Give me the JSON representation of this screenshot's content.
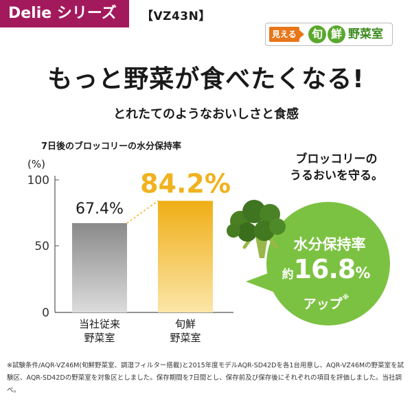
{
  "series_badge": "Delie シリーズ",
  "model": "【VZ43N】",
  "brand": {
    "pre": "見える",
    "kanji1": "旬",
    "kanji2": "鮮",
    "post": "野菜室"
  },
  "headline": "もっと野菜が食べたくなる!",
  "subhead": "とれたてのようなおいしさと食感",
  "colors": {
    "badge": "#a31a5c",
    "bar_gray": "#8c8c8c",
    "bar_gold": "#f0b21e",
    "value_gold": "#f0b21e",
    "bubble": "#7cc242"
  },
  "chart_data": {
    "type": "bar",
    "title": "7日後のブロッコリーの水分保持率",
    "ylabel": "(%)",
    "ylim": [
      0,
      100
    ],
    "yticks": [
      "0",
      "50",
      "100"
    ],
    "categories": [
      {
        "line1": "当社従来",
        "line2": "野菜室"
      },
      {
        "line1": "旬鮮",
        "line2": "野菜室"
      }
    ],
    "values": [
      67.4,
      84.2
    ],
    "value_labels": [
      "67.4%",
      "84.2%"
    ]
  },
  "callout": {
    "head_line1": "ブロッコリーの",
    "head_line2": "うるおいを守る。",
    "line1": "水分保持率",
    "prefix": "約",
    "value": "16.8",
    "pct": "%",
    "line3": "アップ",
    "mark": "※"
  },
  "footnote": "※試験条件/AQR-VZ46M(旬鮮野菜室、調湿フィルター搭載)と2015年度モデルAQR-SD42Dを各1台用意し、AQR-VZ46Mの野菜室を試験区、AQR-SD42Dの野菜室を対象区としました。保存期間を7日間とし、保存前及び保存後にそれぞれの項目を評価しました。当社調べ。"
}
